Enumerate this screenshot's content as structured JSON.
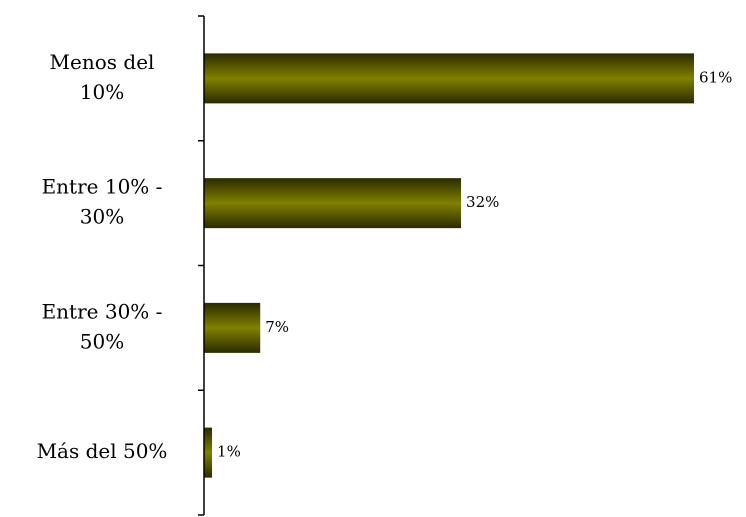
{
  "chart_data": {
    "type": "bar",
    "orientation": "horizontal",
    "categories": [
      [
        "Menos del",
        "10%"
      ],
      [
        "Entre 10% -",
        "30%"
      ],
      [
        "Entre 30% -",
        "50%"
      ],
      [
        "Más del 50%"
      ]
    ],
    "values": [
      61,
      32,
      7,
      1
    ],
    "data_labels": [
      "61%",
      "32%",
      "7%",
      "1%"
    ],
    "title": "",
    "xlabel": "",
    "ylabel": "",
    "xlim": [
      0,
      61
    ],
    "grid": false,
    "legend": "none",
    "colors": {
      "bar_center": "#808000",
      "bar_edge": "#2b2b00",
      "axis": "#000000"
    }
  }
}
